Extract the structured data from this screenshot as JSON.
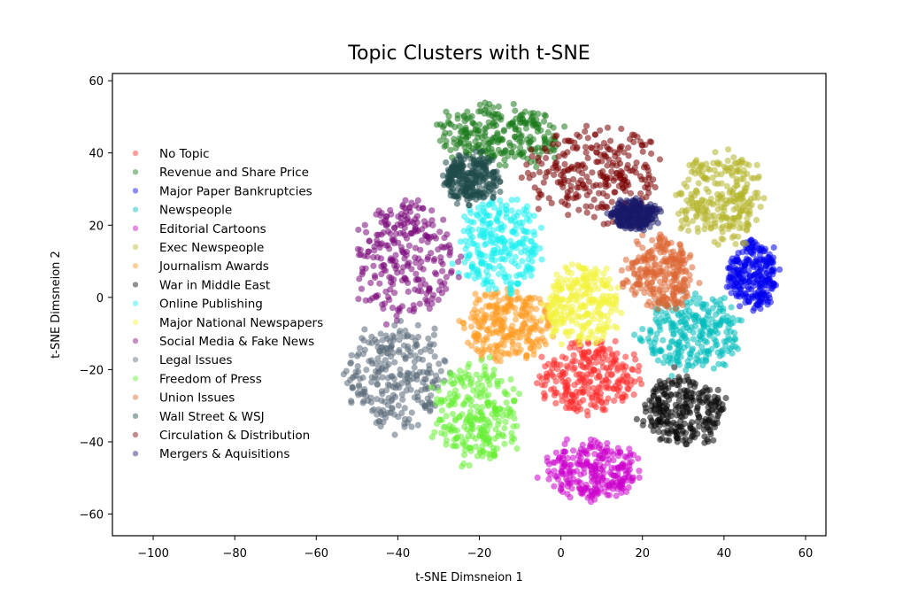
{
  "chart_data": {
    "type": "scatter",
    "title": "Topic Clusters with t-SNE",
    "xlabel": "t-SNE Dimsneion 1",
    "ylabel": "t-SNE Dimsneion 2",
    "xlim": [
      -110,
      65
    ],
    "ylim": [
      -66,
      62
    ],
    "xticks": [
      -100,
      -80,
      -60,
      -40,
      -20,
      0,
      20,
      40,
      60
    ],
    "yticks": [
      -60,
      -40,
      -20,
      0,
      20,
      40,
      60
    ],
    "grid": false,
    "legend_position": "upper-left",
    "series": [
      {
        "name": "No Topic",
        "color": "#ff2a2a",
        "cx": 7,
        "cy": -22,
        "rx": 12,
        "ry": 10
      },
      {
        "name": "Revenue and Share Price",
        "color": "#1a7a1a",
        "cx": -15,
        "cy": 45,
        "rx": 15,
        "ry": 8
      },
      {
        "name": "Major Paper Bankruptcies",
        "color": "#0000ee",
        "cx": 47,
        "cy": 6,
        "rx": 6,
        "ry": 9
      },
      {
        "name": "Newspeople",
        "color": "#00bbbb",
        "cx": 32,
        "cy": -10,
        "rx": 12,
        "ry": 10
      },
      {
        "name": "Editorial Cartoons",
        "color": "#cc00cc",
        "cx": 8,
        "cy": -48,
        "rx": 11,
        "ry": 8
      },
      {
        "name": "Exec Newspeople",
        "color": "#b5b52a",
        "cx": 39,
        "cy": 27,
        "rx": 10,
        "ry": 12
      },
      {
        "name": "Journalism Awards",
        "color": "#ff9a20",
        "cx": -13,
        "cy": -8,
        "rx": 11,
        "ry": 10
      },
      {
        "name": "War in Middle East",
        "color": "#0a0a0a",
        "cx": 30,
        "cy": -31,
        "rx": 10,
        "ry": 9
      },
      {
        "name": "Online Publishing",
        "color": "#19eeee",
        "cx": -15,
        "cy": 14,
        "rx": 10,
        "ry": 13
      },
      {
        "name": "Major National Newspapers",
        "color": "#f2f23a",
        "cx": 5,
        "cy": -2,
        "rx": 9,
        "ry": 11
      },
      {
        "name": "Social Media & Fake News",
        "color": "#7a0a7a",
        "cx": -38,
        "cy": 10,
        "rx": 12,
        "ry": 16
      },
      {
        "name": "Legal Issues",
        "color": "#5a6a78",
        "cx": -40,
        "cy": -22,
        "rx": 12,
        "ry": 14
      },
      {
        "name": "Freedom of Press",
        "color": "#66ee33",
        "cx": -21,
        "cy": -32,
        "rx": 10,
        "ry": 14
      },
      {
        "name": "Union Issues",
        "color": "#dd6633",
        "cx": 24,
        "cy": 6,
        "rx": 8,
        "ry": 10
      },
      {
        "name": "Wall Street & WSJ",
        "color": "#1f4a4a",
        "cx": -22,
        "cy": 33,
        "rx": 7,
        "ry": 7
      },
      {
        "name": "Circulation & Distribution",
        "color": "#7a0000",
        "cx": 9,
        "cy": 34,
        "rx": 16,
        "ry": 13
      },
      {
        "name": "Mergers & Aquisitions",
        "color": "#1a1a6a",
        "cx": 18,
        "cy": 23,
        "rx": 6,
        "ry": 4
      }
    ]
  }
}
